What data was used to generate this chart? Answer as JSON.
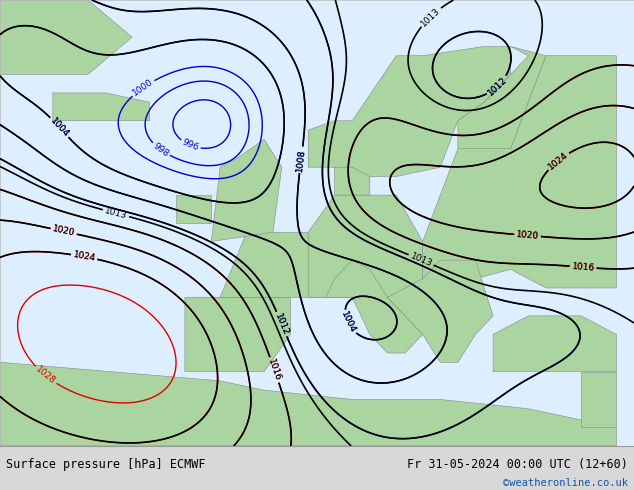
{
  "title_left": "Surface pressure [hPa] ECMWF",
  "title_right": "Fr 31-05-2024 00:00 UTC (12+60)",
  "credit": "©weatheronline.co.uk",
  "land_color": "#aad4a0",
  "sea_color": "#ddeeff",
  "bottom_bar_color": "#d8d8d8",
  "color_black": "#000000",
  "color_red": "#dd0000",
  "color_blue": "#0000cc",
  "color_link": "#1155aa",
  "figsize": [
    6.34,
    4.9
  ],
  "dpi": 100,
  "isobar_step": 4,
  "base_pressure": 1013.0
}
